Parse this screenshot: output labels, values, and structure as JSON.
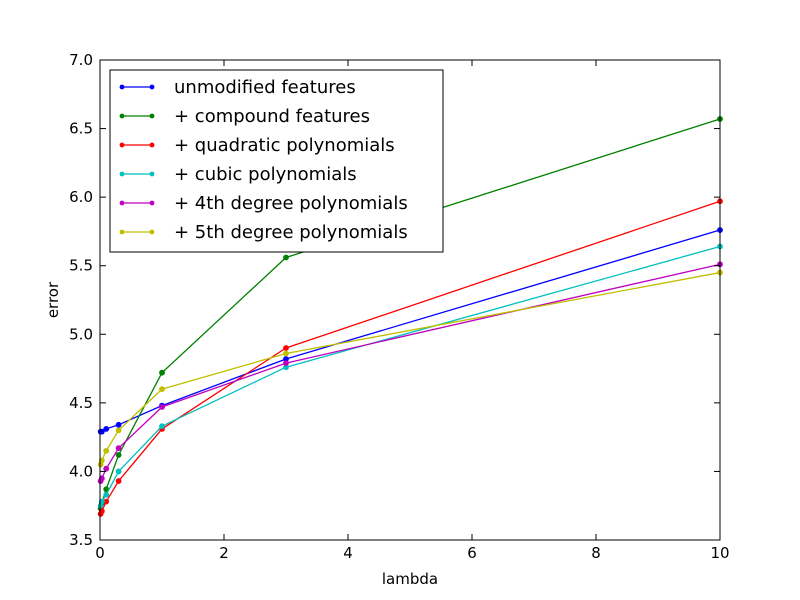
{
  "chart_data": {
    "type": "line",
    "title": "",
    "xlabel": "lambda",
    "ylabel": "error",
    "xlim": [
      0,
      10
    ],
    "ylim": [
      3.5,
      7.0
    ],
    "xticks": [
      0,
      2,
      4,
      6,
      8,
      10
    ],
    "xtick_labels": [
      "0",
      "2",
      "4",
      "6",
      "8",
      "10"
    ],
    "yticks": [
      3.5,
      4.0,
      4.5,
      5.0,
      5.5,
      6.0,
      6.5,
      7.0
    ],
    "ytick_labels": [
      "3.5",
      "4.0",
      "4.5",
      "5.0",
      "5.5",
      "6.0",
      "6.5",
      "7.0"
    ],
    "grid": false,
    "legend_position": "top-left",
    "x": [
      0.01,
      0.03,
      0.1,
      0.3,
      1,
      3,
      10
    ],
    "series": [
      {
        "name": "unmodified features",
        "color": "#0000ff",
        "values": [
          4.29,
          4.29,
          4.31,
          4.34,
          4.48,
          4.82,
          5.76
        ]
      },
      {
        "name": "+ compound features",
        "color": "#008000",
        "values": [
          3.73,
          3.77,
          3.87,
          4.12,
          4.72,
          5.56,
          6.57
        ]
      },
      {
        "name": "+ quadratic polynomials",
        "color": "#ff0000",
        "values": [
          3.69,
          3.71,
          3.78,
          3.93,
          4.31,
          4.9,
          5.97
        ]
      },
      {
        "name": "+ cubic polynomials",
        "color": "#00bfbf",
        "values": [
          3.75,
          3.78,
          3.83,
          4.0,
          4.33,
          4.76,
          5.64
        ]
      },
      {
        "name": "+ 4th degree polynomials",
        "color": "#bf00bf",
        "values": [
          3.93,
          3.95,
          4.02,
          4.17,
          4.47,
          4.79,
          5.51
        ]
      },
      {
        "name": "+ 5th degree polynomials",
        "color": "#bfbf00",
        "values": [
          4.05,
          4.08,
          4.15,
          4.3,
          4.6,
          4.86,
          5.45
        ]
      }
    ]
  }
}
